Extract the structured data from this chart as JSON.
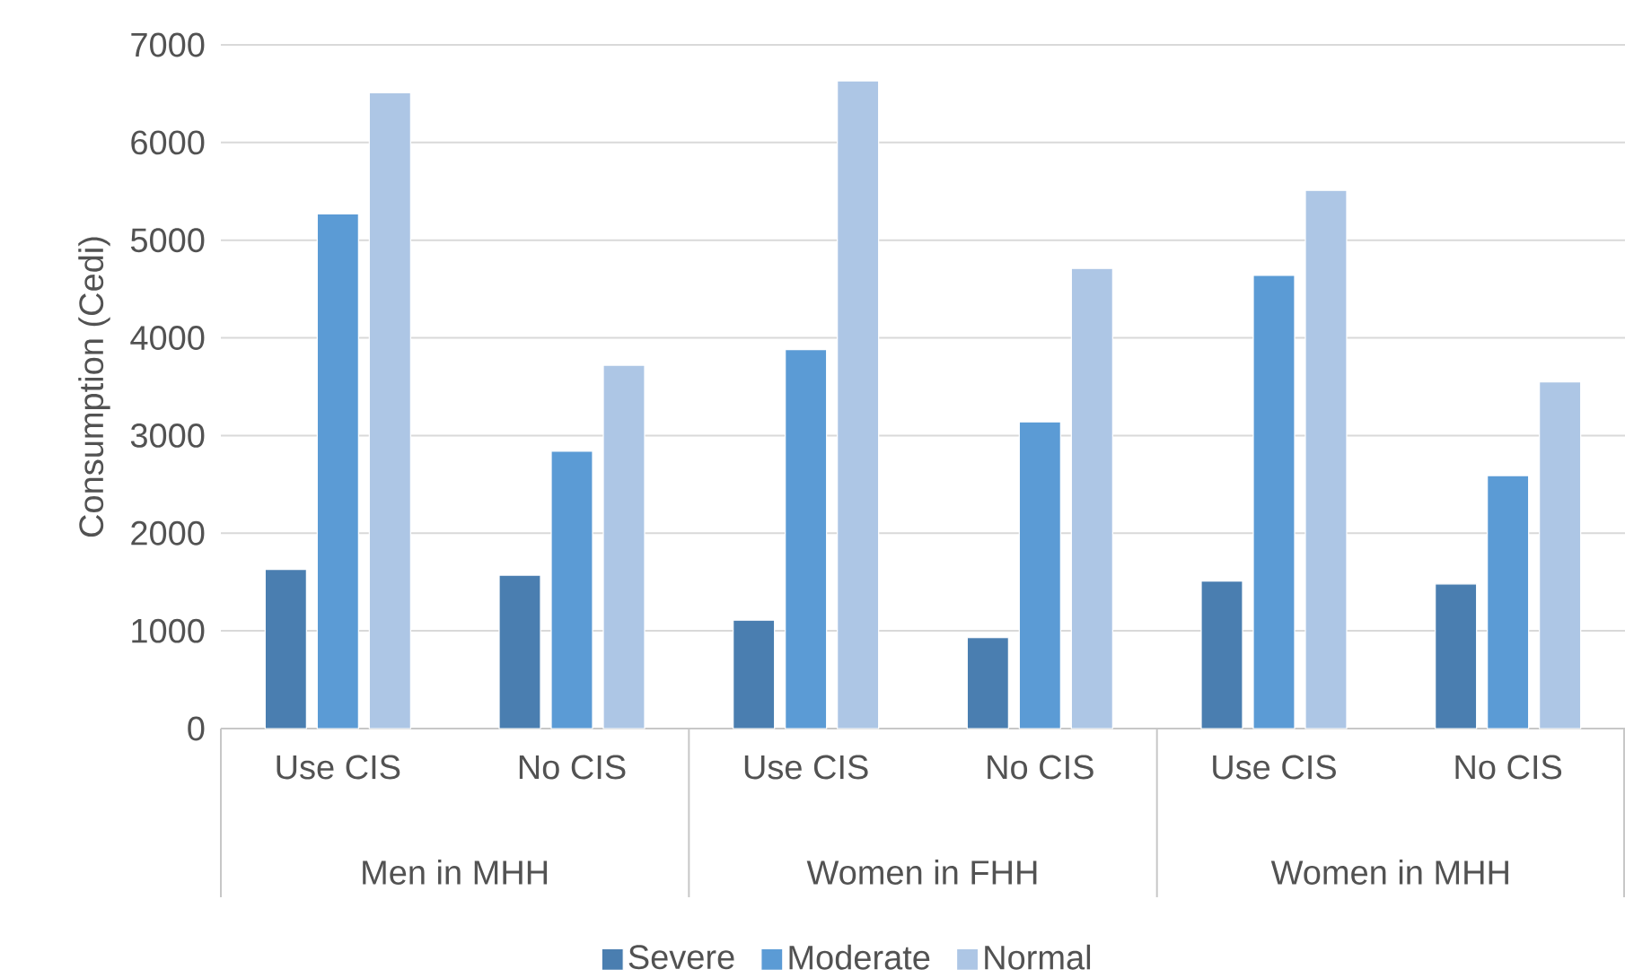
{
  "chart_data": {
    "type": "bar",
    "ylabel": "Consumption (Cedi)",
    "categories": [
      "Use CIS",
      "No CIS",
      "Use CIS",
      "No CIS",
      "Use CIS",
      "No CIS"
    ],
    "annotations": [
      "Men in MHH",
      "Women in FHH",
      "Women in MHH"
    ],
    "series": [
      {
        "name": "Severe",
        "color": "#4a7eb0",
        "values": [
          1630,
          1570,
          1110,
          930,
          1510,
          1480
        ]
      },
      {
        "name": "Moderate",
        "color": "#5b9bd5",
        "values": [
          5270,
          2840,
          3880,
          3140,
          4640,
          2590
        ]
      },
      {
        "name": "Normal",
        "color": "#adc6e5",
        "values": [
          6510,
          3720,
          6630,
          4710,
          5510,
          3550
        ]
      }
    ],
    "ylim": [
      0,
      7000
    ],
    "yticks": [
      0,
      1000,
      2000,
      3000,
      4000,
      5000,
      6000,
      7000
    ],
    "grid": "y",
    "legend": "bottom"
  }
}
